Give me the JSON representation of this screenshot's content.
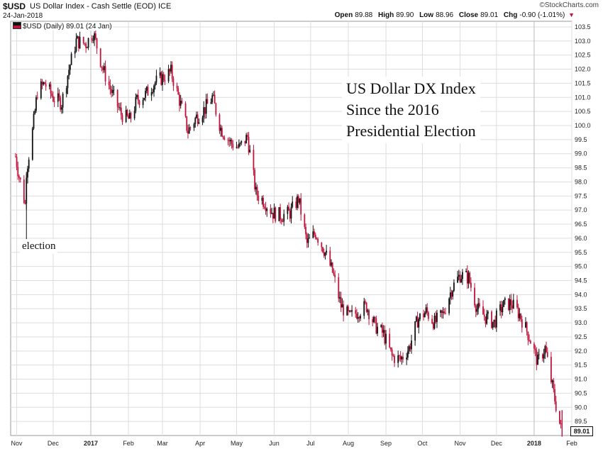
{
  "header": {
    "symbol": "$USD",
    "name": "US Dollar Index - Cash Settle (EOD)",
    "exchange": "ICE",
    "date": "24-Jan-2018",
    "brand": "©StockCharts.com",
    "open_label": "Open",
    "open": "89.88",
    "high_label": "High",
    "high": "89.90",
    "low_label": "Low",
    "low": "88.96",
    "close_label": "Close",
    "close": "89.01",
    "chg_label": "Chg",
    "chg": "-0.90 (-1.01%)"
  },
  "legend": {
    "text": "$USD (Daily) 89.01 (24 Jan)"
  },
  "annotation": {
    "line1": "US Dollar DX Index",
    "line2": "Since the 2016",
    "line3": "Presidential Election",
    "election": "election"
  },
  "last_value_label": "89.01",
  "colors": {
    "up": "#111111",
    "down": "#c0143c",
    "grid": "#dddddd",
    "axis": "#888888"
  },
  "chart_data": {
    "type": "line",
    "title": "$USD US Dollar Index - Cash Settle (EOD)",
    "series": [
      {
        "name": "$USD (Daily)",
        "x": [
          "2016-10-31",
          "2016-11-03",
          "2016-11-08",
          "2016-11-09",
          "2016-11-14",
          "2016-11-18",
          "2016-11-24",
          "2016-12-01",
          "2016-12-08",
          "2016-12-14",
          "2016-12-20",
          "2016-12-28",
          "2017-01-03",
          "2017-01-11",
          "2017-01-18",
          "2017-01-26",
          "2017-02-02",
          "2017-02-08",
          "2017-02-15",
          "2017-02-22",
          "2017-03-01",
          "2017-03-08",
          "2017-03-15",
          "2017-03-22",
          "2017-03-29",
          "2017-04-05",
          "2017-04-11",
          "2017-04-18",
          "2017-04-26",
          "2017-05-03",
          "2017-05-10",
          "2017-05-17",
          "2017-05-24",
          "2017-05-31",
          "2017-06-07",
          "2017-06-14",
          "2017-06-21",
          "2017-06-28",
          "2017-07-05",
          "2017-07-12",
          "2017-07-19",
          "2017-07-26",
          "2017-08-02",
          "2017-08-09",
          "2017-08-16",
          "2017-08-23",
          "2017-08-30",
          "2017-09-06",
          "2017-09-13",
          "2017-09-20",
          "2017-09-27",
          "2017-10-04",
          "2017-10-11",
          "2017-10-18",
          "2017-10-25",
          "2017-11-01",
          "2017-11-08",
          "2017-11-15",
          "2017-11-22",
          "2017-11-29",
          "2017-12-06",
          "2017-12-13",
          "2017-12-20",
          "2017-12-28",
          "2018-01-04",
          "2018-01-10",
          "2018-01-17",
          "2018-01-24"
        ],
        "y": [
          98.9,
          98.2,
          97.2,
          98.4,
          99.8,
          101.2,
          101.5,
          101.0,
          100.8,
          102.0,
          103.0,
          102.9,
          103.3,
          102.0,
          101.2,
          100.4,
          100.2,
          100.9,
          101.1,
          101.5,
          101.7,
          101.9,
          100.9,
          99.8,
          100.3,
          100.6,
          101.0,
          99.9,
          99.4,
          99.2,
          99.6,
          97.6,
          97.3,
          96.9,
          96.8,
          96.9,
          97.4,
          95.8,
          96.2,
          95.6,
          94.8,
          93.6,
          93.2,
          93.4,
          93.6,
          92.9,
          92.6,
          91.8,
          91.7,
          92.1,
          93.1,
          93.4,
          93.0,
          93.3,
          94.2,
          94.7,
          94.6,
          93.5,
          93.2,
          93.0,
          93.6,
          93.7,
          93.3,
          92.5,
          91.6,
          92.1,
          90.5,
          89.01
        ]
      }
    ],
    "xlabel": "",
    "ylabel": "",
    "ylim": [
      89.0,
      103.7
    ],
    "yticks": [
      89.5,
      90.0,
      90.5,
      91.0,
      91.5,
      92.0,
      92.5,
      93.0,
      93.5,
      94.0,
      94.5,
      95.0,
      95.5,
      96.0,
      96.5,
      97.0,
      97.5,
      98.0,
      98.5,
      99.0,
      99.5,
      100.0,
      100.5,
      101.0,
      101.5,
      102.0,
      102.5,
      103.0,
      103.5
    ],
    "xticks": [
      "Nov",
      "Dec",
      "2017",
      "Feb",
      "Mar",
      "Apr",
      "May",
      "Jun",
      "Jul",
      "Aug",
      "Sep",
      "Oct",
      "Nov",
      "Dec",
      "2018",
      "Feb"
    ],
    "grid": true
  }
}
